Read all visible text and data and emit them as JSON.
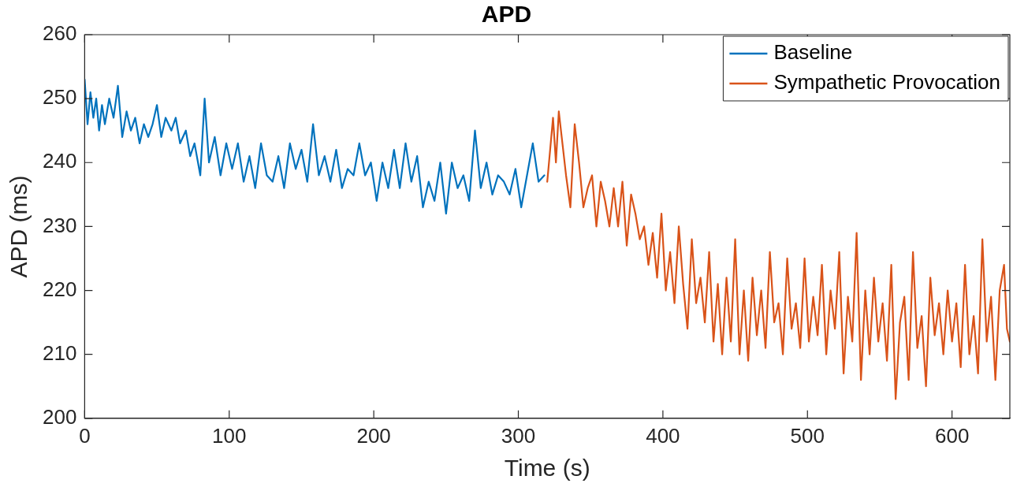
{
  "chart_data": {
    "type": "line",
    "title": "APD",
    "xlabel": "Time (s)",
    "ylabel": "APD (ms)",
    "xlim": [
      0,
      640
    ],
    "xticks": [
      0,
      100,
      200,
      300,
      400,
      500,
      600
    ],
    "ylim": [
      200,
      260
    ],
    "yticks": [
      200,
      210,
      220,
      230,
      240,
      250,
      260
    ],
    "grid": false,
    "legend": "top right",
    "marker": "none",
    "line_style": "solid",
    "series": [
      {
        "name": "Baseline",
        "color": "#0072bd",
        "x": [
          0,
          2,
          4,
          6,
          8,
          10,
          12,
          14,
          17,
          20,
          23,
          26,
          29,
          32,
          35,
          38,
          41,
          44,
          47,
          50,
          53,
          56,
          60,
          63,
          66,
          70,
          73,
          76,
          80,
          83,
          86,
          90,
          94,
          98,
          102,
          106,
          110,
          114,
          118,
          122,
          126,
          130,
          134,
          138,
          142,
          146,
          150,
          154,
          158,
          162,
          166,
          170,
          174,
          178,
          182,
          186,
          190,
          194,
          198,
          202,
          206,
          210,
          214,
          218,
          222,
          226,
          230,
          234,
          238,
          242,
          246,
          250,
          254,
          258,
          262,
          266,
          270,
          274,
          278,
          282,
          286,
          290,
          294,
          298,
          302,
          306,
          310,
          314,
          318
        ],
        "values": [
          253,
          246,
          251,
          247,
          250,
          245,
          249,
          246,
          250,
          247,
          252,
          244,
          248,
          245,
          247,
          243,
          246,
          244,
          246,
          249,
          244,
          247,
          245,
          247,
          243,
          245,
          241,
          243,
          238,
          250,
          240,
          244,
          238,
          243,
          239,
          243,
          237,
          241,
          236,
          243,
          238,
          237,
          241,
          236,
          243,
          239,
          242,
          237,
          246,
          238,
          241,
          237,
          242,
          236,
          239,
          238,
          243,
          238,
          240,
          234,
          240,
          236,
          242,
          236,
          243,
          237,
          241,
          233,
          237,
          234,
          240,
          232,
          240,
          236,
          238,
          234,
          245,
          236,
          240,
          235,
          238,
          237,
          235,
          239,
          233,
          238,
          243,
          237,
          238
        ]
      },
      {
        "name": "Sympathetic Provocation",
        "color": "#d95319",
        "x": [
          320,
          322,
          324,
          326,
          328,
          330,
          333,
          336,
          339,
          342,
          345,
          348,
          351,
          354,
          357,
          360,
          363,
          366,
          369,
          372,
          375,
          378,
          381,
          384,
          387,
          390,
          393,
          396,
          399,
          402,
          405,
          408,
          411,
          414,
          417,
          420,
          423,
          426,
          429,
          432,
          435,
          438,
          441,
          444,
          447,
          450,
          453,
          456,
          459,
          462,
          465,
          468,
          471,
          474,
          477,
          480,
          483,
          486,
          489,
          492,
          495,
          498,
          501,
          504,
          507,
          510,
          513,
          516,
          519,
          522,
          525,
          528,
          531,
          534,
          537,
          540,
          543,
          546,
          549,
          552,
          555,
          558,
          561,
          564,
          567,
          570,
          573,
          576,
          579,
          582,
          585,
          588,
          591,
          594,
          597,
          600,
          603,
          606,
          609,
          612,
          615,
          618,
          621,
          624,
          627,
          630,
          633,
          636,
          638,
          640
        ],
        "values": [
          237,
          242,
          247,
          240,
          248,
          244,
          238,
          233,
          246,
          240,
          233,
          236,
          238,
          230,
          237,
          234,
          230,
          236,
          230,
          237,
          227,
          235,
          232,
          228,
          230,
          224,
          229,
          222,
          232,
          220,
          226,
          218,
          230,
          221,
          214,
          228,
          218,
          222,
          215,
          226,
          212,
          221,
          210,
          222,
          212,
          228,
          210,
          220,
          209,
          222,
          213,
          220,
          211,
          226,
          215,
          218,
          210,
          225,
          214,
          218,
          211,
          225,
          212,
          219,
          213,
          224,
          210,
          220,
          214,
          226,
          207,
          219,
          212,
          229,
          206,
          220,
          210,
          222,
          212,
          218,
          209,
          224,
          203,
          215,
          219,
          206,
          226,
          211,
          216,
          205,
          222,
          213,
          218,
          210,
          220,
          212,
          218,
          208,
          224,
          210,
          216,
          207,
          228,
          212,
          219,
          206,
          220,
          224,
          214,
          212
        ]
      }
    ]
  }
}
